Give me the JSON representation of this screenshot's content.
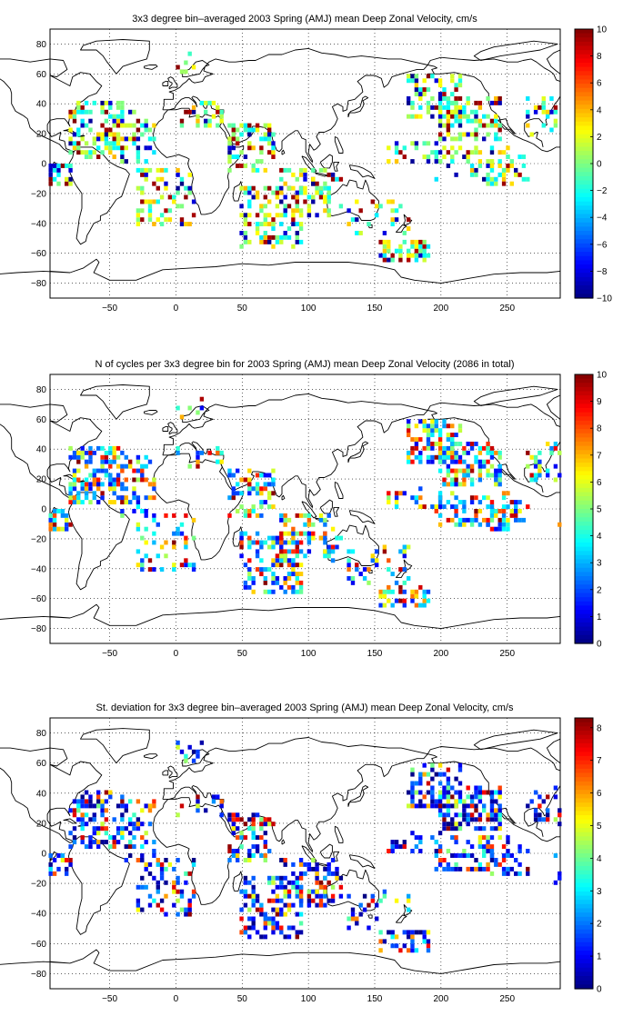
{
  "figure": {
    "panels": [
      {
        "id": "velocity",
        "title": "3x3 degree bin–averaged 2003 Spring (AMJ) mean Deep Zonal Velocity, cm/s",
        "colorbar": {
          "min": -10,
          "max": 10,
          "ticks": [
            "10",
            "8",
            "6",
            "4",
            "2",
            "0",
            "−2",
            "−4",
            "−6",
            "−8",
            "−10"
          ]
        }
      },
      {
        "id": "counts",
        "title": "N of cycles per 3x3 degree bin for 2003 Spring (AMJ) mean Deep Zonal Velocity (2086 in total)",
        "colorbar": {
          "min": 0,
          "max": 10,
          "ticks": [
            "10",
            "9",
            "8",
            "7",
            "6",
            "5",
            "4",
            "3",
            "2",
            "1",
            "0"
          ]
        }
      },
      {
        "id": "stdev",
        "title": "St. deviation for 3x3 degree bin–averaged 2003 Spring (AMJ) mean Deep Zonal Velocity, cm/s",
        "colorbar": {
          "min": 0,
          "max": 8.3,
          "ticks": [
            "8",
            "7",
            "6",
            "5",
            "4",
            "3",
            "2",
            "1",
            "0"
          ]
        }
      }
    ],
    "map_axes": {
      "x_ticks": [
        "−50",
        "0",
        "50",
        "100",
        "150",
        "200",
        "250"
      ],
      "y_ticks": [
        "80",
        "60",
        "40",
        "20",
        "0",
        "−20",
        "−40",
        "−60",
        "−80"
      ],
      "xlim": [
        -95,
        290
      ],
      "ylim": [
        -90,
        90
      ]
    },
    "colormap": "jet"
  }
}
